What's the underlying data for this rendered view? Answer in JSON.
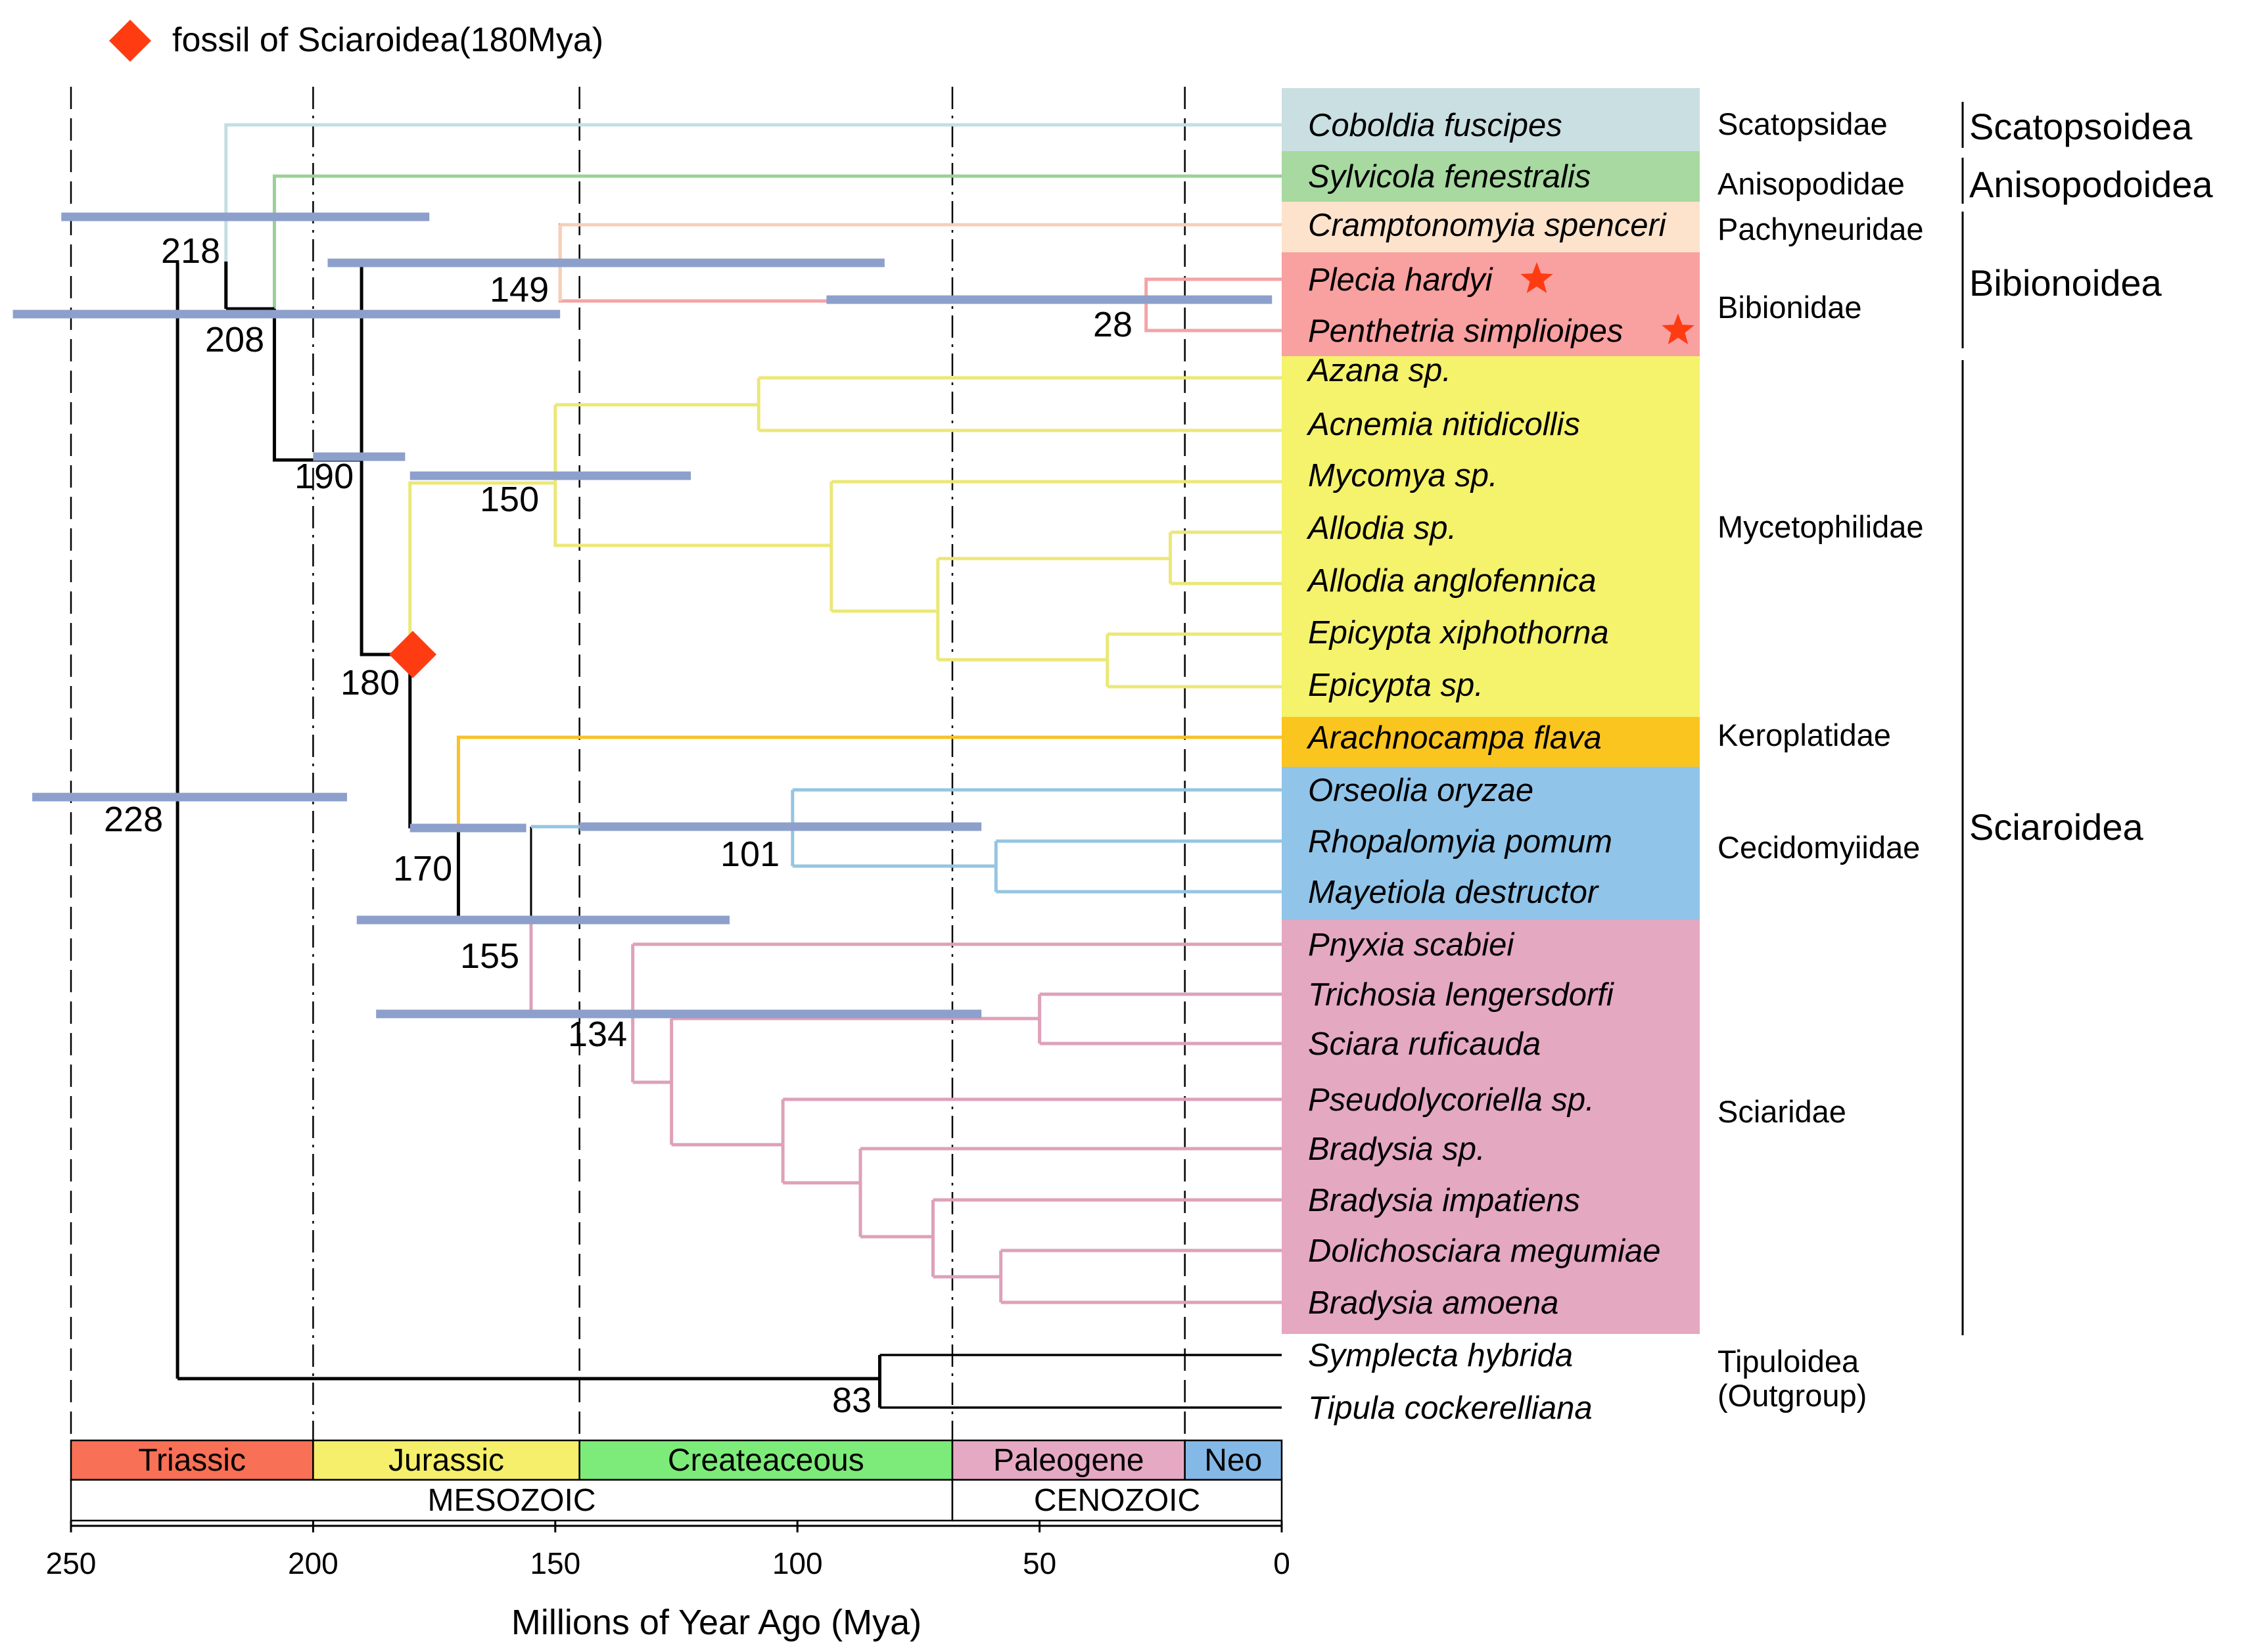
{
  "legend": {
    "label": "fossil of Sciaroidea(180Mya)",
    "color": "#ff3b12"
  },
  "axis": {
    "label": "Millions of Year Ago (Mya)",
    "ticks": [
      "250",
      "200",
      "150",
      "100",
      "50",
      "0"
    ],
    "range": [
      250,
      0
    ]
  },
  "periods": [
    {
      "name": "Triassic",
      "from": 250,
      "to": 200,
      "color": "#f87055"
    },
    {
      "name": "Jurassic",
      "from": 200,
      "to": 145,
      "color": "#f5ef6b"
    },
    {
      "name": "Createaceous",
      "from": 145,
      "to": 68,
      "color": "#7deb7a"
    },
    {
      "name": "Paleogene",
      "from": 68,
      "to": 20,
      "color": "#e6a9c3"
    },
    {
      "name": "Neo",
      "from": 20,
      "to": 0,
      "color": "#84b8e6"
    }
  ],
  "eras": [
    {
      "name": "MESOZOIC",
      "from": 250,
      "to": 68
    },
    {
      "name": "CENOZOIC",
      "from": 68,
      "to": 0
    }
  ],
  "taxa": [
    {
      "name": "Coboldia fuscipes",
      "bg": "#c9dfe2"
    },
    {
      "name": "Sylvicola fenestralis",
      "bg": "#a7d9a0"
    },
    {
      "name": "Cramptonomyia spenceri",
      "bg": "#fde3cc"
    },
    {
      "name": "Plecia hardyi",
      "bg": "#f9a0a0",
      "star": true
    },
    {
      "name": "Penthetria simplioipes",
      "bg": "#f9a0a0",
      "star": true
    },
    {
      "name": "Azana sp.",
      "bg": "#f5f26c"
    },
    {
      "name": "Acnemia nitidicollis",
      "bg": "#f5f26c"
    },
    {
      "name": "Mycomya sp.",
      "bg": "#f5f26c"
    },
    {
      "name": "Allodia sp.",
      "bg": "#f5f26c"
    },
    {
      "name": "Allodia anglofennica",
      "bg": "#f5f26c"
    },
    {
      "name": "Epicypta xiphothorna",
      "bg": "#f5f26c"
    },
    {
      "name": "Epicypta sp.",
      "bg": "#f5f26c"
    },
    {
      "name": "Arachnocampa flava",
      "bg": "#fbc51f"
    },
    {
      "name": "Orseolia oryzae",
      "bg": "#91c4e9"
    },
    {
      "name": "Rhopalomyia pomum",
      "bg": "#91c4e9"
    },
    {
      "name": "Mayetiola destructor",
      "bg": "#91c4e9"
    },
    {
      "name": "Pnyxia scabiei",
      "bg": "#e5a8c1"
    },
    {
      "name": "Trichosia lengersdorfi",
      "bg": "#e5a8c1"
    },
    {
      "name": "Sciara ruficauda",
      "bg": "#e5a8c1"
    },
    {
      "name": "Pseudolycoriella sp.",
      "bg": "#e5a8c1"
    },
    {
      "name": "Bradysia sp.",
      "bg": "#e5a8c1"
    },
    {
      "name": "Bradysia impatiens",
      "bg": "#e5a8c1"
    },
    {
      "name": "Dolichosciara megumiae",
      "bg": "#e5a8c1"
    },
    {
      "name": "Bradysia amoena",
      "bg": "#e5a8c1"
    },
    {
      "name": "Symplecta hybrida",
      "bg": "none"
    },
    {
      "name": "Tipula cockerelliana",
      "bg": "none"
    }
  ],
  "families": [
    "Scatopsidae",
    "Anisopodidae",
    "Pachyneuridae",
    "Bibionidae",
    "Mycetophilidae",
    "Keroplatidae",
    "Cecidomyiidae",
    "Sciaridae",
    "Tipuloidea",
    "(Outgroup)"
  ],
  "superfamilies": [
    "Scatopsoidea",
    "Anisopodoidea",
    "Bibionoidea",
    "Sciaroidea"
  ],
  "nodes": [
    {
      "age": "228",
      "ci": [
        258,
        193
      ]
    },
    {
      "age": "218",
      "ci": [
        252,
        176
      ]
    },
    {
      "age": "208",
      "ci": [
        262,
        149
      ]
    },
    {
      "age": "190",
      "ci": [
        200,
        181
      ]
    },
    {
      "age": "149",
      "ci": [
        197,
        82
      ]
    },
    {
      "age": "28",
      "ci": [
        94,
        2
      ]
    },
    {
      "age": "180",
      "ci": null
    },
    {
      "age": "150",
      "ci": [
        180,
        122
      ]
    },
    {
      "age": "170",
      "ci": [
        180,
        156
      ]
    },
    {
      "age": "155",
      "ci": [
        191,
        114
      ]
    },
    {
      "age": "101",
      "ci": [
        145,
        62
      ]
    },
    {
      "age": "134",
      "ci": [
        187,
        62
      ]
    },
    {
      "age": "83",
      "ci": null
    }
  ],
  "colors": {
    "tree": "#000000",
    "ci_bar": "#8da0cb",
    "scatopsidae": "#c3dfe3",
    "anisopodidae": "#9ccf97",
    "pachyneuridae": "#f7cfb7",
    "bibionidae": "#f4a3a6",
    "mycetophilidae": "#ebe878",
    "keroplatidae": "#f8c02a",
    "cecidomyiidae": "#95c5e1",
    "sciaridae": "#dea1ba",
    "fossil": "#ff3b12"
  }
}
